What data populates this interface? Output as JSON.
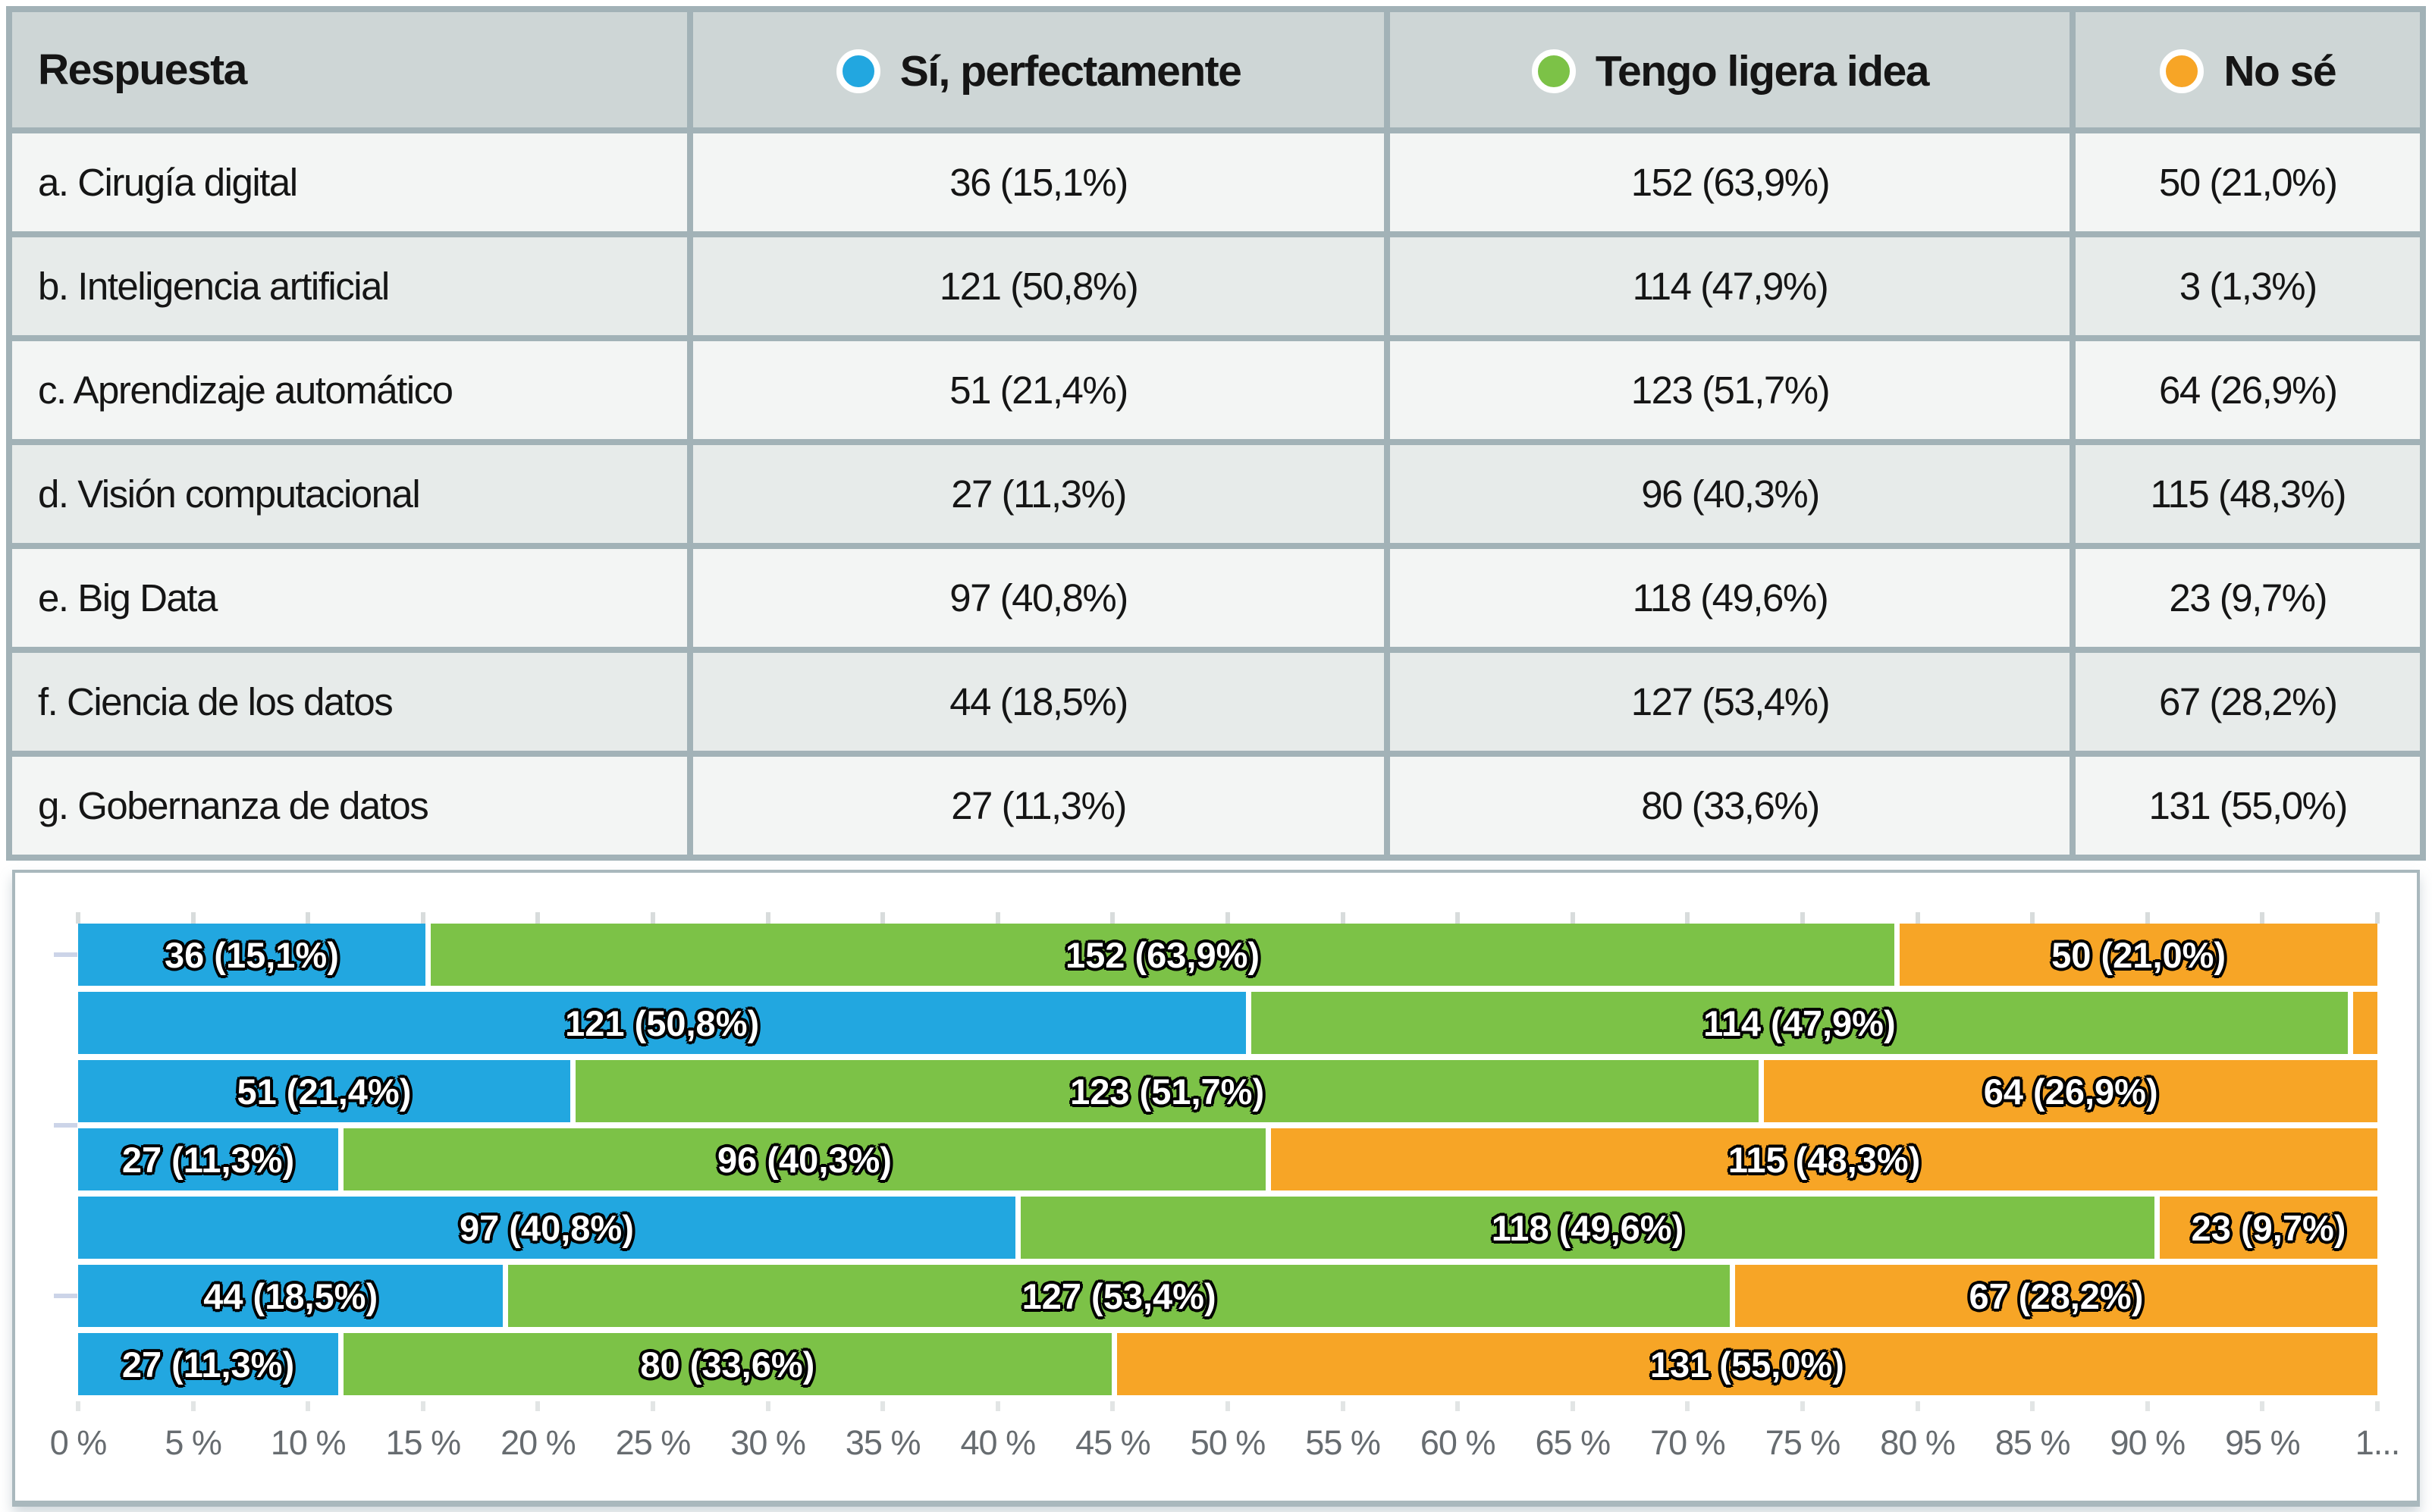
{
  "table": {
    "header": {
      "respuesta": "Respuesta",
      "si": "Sí, perfectamente",
      "ligera": "Tengo ligera idea",
      "nose": "No sé"
    },
    "rows": [
      {
        "label": "a. Cirugía digital",
        "si": "36 (15,1%)",
        "ligera": "152 (63,9%)",
        "nose": "50 (21,0%)"
      },
      {
        "label": "b. Inteligencia artificial",
        "si": "121 (50,8%)",
        "ligera": "114 (47,9%)",
        "nose": "3 (1,3%)"
      },
      {
        "label": "c. Aprendizaje automático",
        "si": "51 (21,4%)",
        "ligera": "123 (51,7%)",
        "nose": "64 (26,9%)"
      },
      {
        "label": "d. Visión computacional",
        "si": "27 (11,3%)",
        "ligera": "96 (40,3%)",
        "nose": "115 (48,3%)"
      },
      {
        "label": "e. Big Data",
        "si": "97 (40,8%)",
        "ligera": "118 (49,6%)",
        "nose": "23 (9,7%)"
      },
      {
        "label": "f. Ciencia de los datos",
        "si": "44 (18,5%)",
        "ligera": "127 (53,4%)",
        "nose": "67 (28,2%)"
      },
      {
        "label": "g. Gobernanza de datos",
        "si": "27 (11,3%)",
        "ligera": "80 (33,6%)",
        "nose": "131 (55,0%)"
      }
    ]
  },
  "chart_data": {
    "type": "bar",
    "orientation": "horizontal",
    "stacked": true,
    "grid": false,
    "legend_position": "table-header",
    "xlim": [
      0,
      100
    ],
    "categories": [
      "a. Cirugía digital",
      "b. Inteligencia artificial",
      "c. Aprendizaje automático",
      "d. Visión computacional",
      "e. Big Data",
      "f. Ciencia de los datos",
      "g. Gobernanza de datos"
    ],
    "series": [
      {
        "key": "si",
        "name": "Sí, perfectamente",
        "color": "#22a7e0",
        "counts": [
          36,
          121,
          51,
          27,
          97,
          44,
          27
        ],
        "percents": [
          15.1,
          50.8,
          21.4,
          11.3,
          40.8,
          18.5,
          11.3
        ],
        "labels": [
          "36 (15,1%)",
          "121 (50,8%)",
          "51 (21,4%)",
          "27 (11,3%)",
          "97 (40,8%)",
          "44 (18,5%)",
          "27 (11,3%)"
        ]
      },
      {
        "key": "ligera",
        "name": "Tengo ligera idea",
        "color": "#7cc247",
        "counts": [
          152,
          114,
          123,
          96,
          118,
          127,
          80
        ],
        "percents": [
          63.9,
          47.9,
          51.7,
          40.3,
          49.6,
          53.4,
          33.6
        ],
        "labels": [
          "152 (63,9%)",
          "114 (47,9%)",
          "123 (51,7%)",
          "96 (40,3%)",
          "118 (49,6%)",
          "127 (53,4%)",
          "80 (33,6%)"
        ]
      },
      {
        "key": "nose",
        "name": "No sé",
        "color": "#f7a526",
        "counts": [
          50,
          3,
          64,
          115,
          23,
          67,
          131
        ],
        "percents": [
          21.0,
          1.3,
          26.9,
          48.3,
          9.7,
          28.2,
          55.0
        ],
        "labels": [
          "50 (21,0%)",
          "",
          "64 (26,9%)",
          "115 (48,3%)",
          "23 (9,7%)",
          "67 (28,2%)",
          "131 (55,0%)"
        ]
      }
    ],
    "axis_ticks": [
      "0 %",
      "5 %",
      "10 %",
      "15 %",
      "20 %",
      "25 %",
      "30 %",
      "35 %",
      "40 %",
      "45 %",
      "50 %",
      "55 %",
      "60 %",
      "65 %",
      "70 %",
      "75 %",
      "80 %",
      "85 %",
      "90 %",
      "95 %",
      "1..."
    ]
  }
}
